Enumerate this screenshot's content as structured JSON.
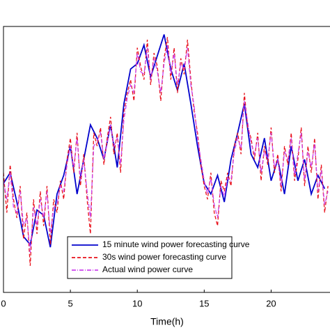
{
  "chart_data": {
    "type": "line",
    "xlabel": "Time(h)",
    "xlim": [
      0,
      24.4
    ],
    "xticks": [
      0,
      5,
      10,
      15,
      20
    ],
    "ylim": [
      0,
      100
    ],
    "legend": "lower center",
    "series": [
      {
        "name": "15 minute wind power forecasting curve",
        "color": "#0000cc",
        "style": "solid",
        "x": [
          0,
          0.5,
          1,
          1.5,
          2,
          2.5,
          3,
          3.5,
          4,
          4.5,
          5,
          5.5,
          6,
          6.5,
          7,
          7.5,
          8,
          8.5,
          9,
          9.5,
          10,
          10.5,
          11,
          11.5,
          12,
          12.5,
          13,
          13.5,
          14,
          14.5,
          15,
          15.5,
          16,
          16.5,
          17,
          17.5,
          18,
          18.5,
          19,
          19.5,
          20,
          20.5,
          21,
          21.5,
          22,
          22.5,
          23,
          23.5,
          24
        ],
        "values": [
          41,
          45,
          34,
          21,
          18,
          31,
          29,
          17,
          37,
          44,
          55,
          37,
          50,
          63,
          58,
          50,
          63,
          47,
          71,
          84,
          86,
          93,
          81,
          89,
          97,
          84,
          76,
          86,
          71,
          55,
          41,
          37,
          44,
          34,
          50,
          60,
          71,
          52,
          47,
          58,
          42,
          50,
          37,
          55,
          42,
          50,
          37,
          44,
          39
        ]
      },
      {
        "name": "30s wind power forecasting curve",
        "color": "#e8101a",
        "style": "dashed",
        "x": [
          0,
          0.25,
          0.5,
          0.75,
          1,
          1.25,
          1.5,
          1.75,
          2,
          2.25,
          2.5,
          2.75,
          3,
          3.25,
          3.5,
          3.75,
          4,
          4.25,
          4.5,
          4.75,
          5,
          5.25,
          5.5,
          5.75,
          6,
          6.25,
          6.5,
          6.75,
          7,
          7.25,
          7.5,
          7.75,
          8,
          8.25,
          8.5,
          8.75,
          9,
          9.25,
          9.5,
          9.75,
          10,
          10.25,
          10.5,
          10.75,
          11,
          11.25,
          11.5,
          11.75,
          12,
          12.25,
          12.5,
          12.75,
          13,
          13.25,
          13.5,
          13.75,
          14,
          14.25,
          14.5,
          14.75,
          15,
          15.25,
          15.5,
          15.75,
          16,
          16.25,
          16.5,
          16.75,
          17,
          17.25,
          17.5,
          17.75,
          18,
          18.25,
          18.5,
          18.75,
          19,
          19.25,
          19.5,
          19.75,
          20,
          20.25,
          20.5,
          20.75,
          21,
          21.25,
          21.5,
          21.75,
          22,
          22.25,
          22.5,
          22.75,
          23,
          23.25,
          23.5,
          23.75,
          24,
          24.25
        ],
        "values": [
          45,
          30,
          48,
          35,
          28,
          40,
          20,
          30,
          10,
          35,
          22,
          38,
          25,
          40,
          18,
          35,
          30,
          42,
          35,
          50,
          58,
          45,
          60,
          40,
          52,
          35,
          22,
          60,
          55,
          62,
          48,
          58,
          66,
          52,
          60,
          45,
          68,
          75,
          80,
          72,
          92,
          85,
          80,
          95,
          78,
          90,
          85,
          72,
          88,
          96,
          80,
          92,
          75,
          88,
          82,
          95,
          80,
          68,
          60,
          48,
          40,
          35,
          45,
          30,
          25,
          42,
          38,
          45,
          40,
          55,
          60,
          52,
          75,
          62,
          58,
          50,
          60,
          42,
          55,
          48,
          62,
          45,
          52,
          38,
          55,
          48,
          60,
          42,
          50,
          62,
          40,
          55,
          45,
          58,
          35,
          48,
          30,
          40
        ]
      },
      {
        "name": "Actual wind power curve",
        "color": "#cc44ee",
        "style": "dashdot",
        "x": [
          0,
          0.25,
          0.5,
          0.75,
          1,
          1.25,
          1.5,
          1.75,
          2,
          2.25,
          2.5,
          2.75,
          3,
          3.25,
          3.5,
          3.75,
          4,
          4.25,
          4.5,
          4.75,
          5,
          5.25,
          5.5,
          5.75,
          6,
          6.25,
          6.5,
          6.75,
          7,
          7.25,
          7.5,
          7.75,
          8,
          8.25,
          8.5,
          8.75,
          9,
          9.25,
          9.5,
          9.75,
          10,
          10.25,
          10.5,
          10.75,
          11,
          11.25,
          11.5,
          11.75,
          12,
          12.25,
          12.5,
          12.75,
          13,
          13.25,
          13.5,
          13.75,
          14,
          14.25,
          14.5,
          14.75,
          15,
          15.25,
          15.5,
          15.75,
          16,
          16.25,
          16.5,
          16.75,
          17,
          17.25,
          17.5,
          17.75,
          18,
          18.25,
          18.5,
          18.75,
          19,
          19.25,
          19.5,
          19.75,
          20,
          20.25,
          20.5,
          20.75,
          21,
          21.25,
          21.5,
          21.75,
          22,
          22.25,
          22.5,
          22.75,
          23,
          23.25,
          23.5,
          23.75,
          24,
          24.25
        ],
        "values": [
          42,
          35,
          45,
          32,
          30,
          38,
          25,
          28,
          15,
          32,
          25,
          35,
          28,
          38,
          22,
          32,
          33,
          40,
          38,
          48,
          55,
          47,
          58,
          42,
          50,
          38,
          28,
          55,
          57,
          60,
          50,
          56,
          63,
          55,
          58,
          48,
          65,
          73,
          78,
          75,
          90,
          83,
          82,
          92,
          80,
          88,
          83,
          75,
          86,
          93,
          82,
          90,
          78,
          86,
          84,
          92,
          78,
          70,
          58,
          50,
          42,
          37,
          43,
          33,
          28,
          40,
          36,
          43,
          42,
          53,
          58,
          54,
          72,
          64,
          56,
          52,
          58,
          45,
          53,
          50,
          60,
          47,
          50,
          40,
          53,
          50,
          58,
          44,
          52,
          60,
          42,
          53,
          47,
          56,
          38,
          46,
          33,
          38
        ]
      }
    ]
  }
}
